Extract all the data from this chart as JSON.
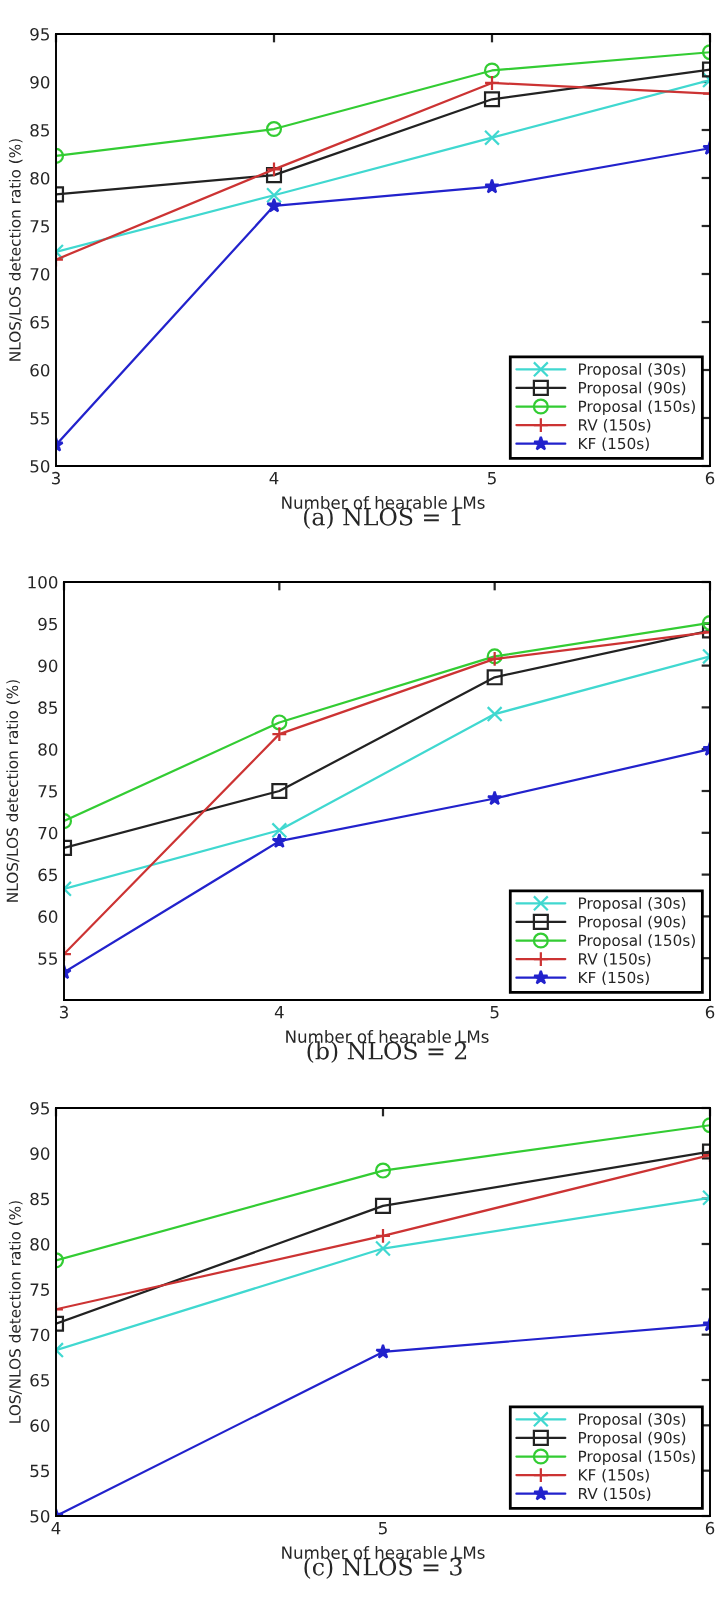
{
  "chart_data": [
    {
      "type": "line",
      "title": "(a) NLOS = 1",
      "xlabel": "Number of hearable LMs",
      "ylabel": "NLOS/LOS detection ratio (%)",
      "x": [
        3,
        4,
        5,
        6
      ],
      "xlim": [
        3,
        6
      ],
      "xticks": [
        3,
        4,
        5,
        6
      ],
      "ylim": [
        50,
        95
      ],
      "yticks": [
        50,
        55,
        60,
        65,
        70,
        75,
        80,
        85,
        90,
        95
      ],
      "legend": "bottom right",
      "grid": false,
      "series": [
        {
          "name": "Proposal (30s)",
          "color": "#40d8d0",
          "marker": "cross",
          "values": [
            72.3,
            78.2,
            84.2,
            90.2
          ]
        },
        {
          "name": "Proposal (90s)",
          "color": "#222222",
          "marker": "square",
          "values": [
            78.3,
            80.3,
            88.2,
            91.3
          ]
        },
        {
          "name": "Proposal (150s)",
          "color": "#33cc33",
          "marker": "circle",
          "values": [
            82.3,
            85.1,
            91.2,
            93.1
          ]
        },
        {
          "name": "RV (150s)",
          "color": "#cc3333",
          "marker": "plus",
          "values": [
            71.5,
            80.9,
            89.9,
            88.8
          ]
        },
        {
          "name": "KF (150s)",
          "color": "#2222cc",
          "marker": "star",
          "values": [
            52.2,
            77.1,
            79.1,
            83.1
          ]
        }
      ]
    },
    {
      "type": "line",
      "title": "(b) NLOS = 2",
      "xlabel": "Number of hearable LMs",
      "ylabel": "NLOS/LOS detection ratio (%)",
      "x": [
        3,
        4,
        5,
        6
      ],
      "xlim": [
        3,
        6
      ],
      "xticks": [
        3,
        4,
        5,
        6
      ],
      "ylim": [
        50,
        100
      ],
      "yticks": [
        55,
        60,
        65,
        70,
        75,
        80,
        85,
        90,
        95,
        100
      ],
      "legend": "bottom right",
      "grid": false,
      "series": [
        {
          "name": "Proposal (30s)",
          "color": "#40d8d0",
          "marker": "cross",
          "values": [
            63.3,
            70.3,
            84.2,
            91.1
          ]
        },
        {
          "name": "Proposal (90s)",
          "color": "#222222",
          "marker": "square",
          "values": [
            68.2,
            75.0,
            88.6,
            94.2
          ]
        },
        {
          "name": "Proposal (150s)",
          "color": "#33cc33",
          "marker": "circle",
          "values": [
            71.4,
            83.2,
            91.1,
            95.1
          ]
        },
        {
          "name": "RV (150s)",
          "color": "#cc3333",
          "marker": "plus",
          "values": [
            55.5,
            81.8,
            90.8,
            94.0
          ]
        },
        {
          "name": "KF (150s)",
          "color": "#2222cc",
          "marker": "star",
          "values": [
            53.3,
            69.0,
            74.1,
            80.0
          ]
        }
      ]
    },
    {
      "type": "line",
      "title": "(c) NLOS = 3",
      "xlabel": "Number of hearable LMs",
      "ylabel": "LOS/NLOS detection ratio (%)",
      "x": [
        4,
        5,
        6
      ],
      "xlim": [
        4,
        6
      ],
      "xticks": [
        4,
        5,
        6
      ],
      "ylim": [
        50,
        95
      ],
      "yticks": [
        50,
        55,
        60,
        65,
        70,
        75,
        80,
        85,
        90,
        95
      ],
      "legend": "bottom right",
      "grid": false,
      "series": [
        {
          "name": "Proposal (30s)",
          "color": "#40d8d0",
          "marker": "cross",
          "values": [
            68.3,
            79.5,
            85.1
          ]
        },
        {
          "name": "Proposal (90s)",
          "color": "#222222",
          "marker": "square",
          "values": [
            71.2,
            84.2,
            90.2
          ]
        },
        {
          "name": "Proposal (150s)",
          "color": "#33cc33",
          "marker": "circle",
          "values": [
            78.2,
            88.1,
            93.1
          ]
        },
        {
          "name": "KF (150s)",
          "color": "#cc3333",
          "marker": "plus",
          "values": [
            72.8,
            80.9,
            89.8
          ]
        },
        {
          "name": "RV (150s)",
          "color": "#2222cc",
          "marker": "star",
          "values": [
            50.0,
            68.1,
            71.1
          ]
        }
      ]
    }
  ]
}
